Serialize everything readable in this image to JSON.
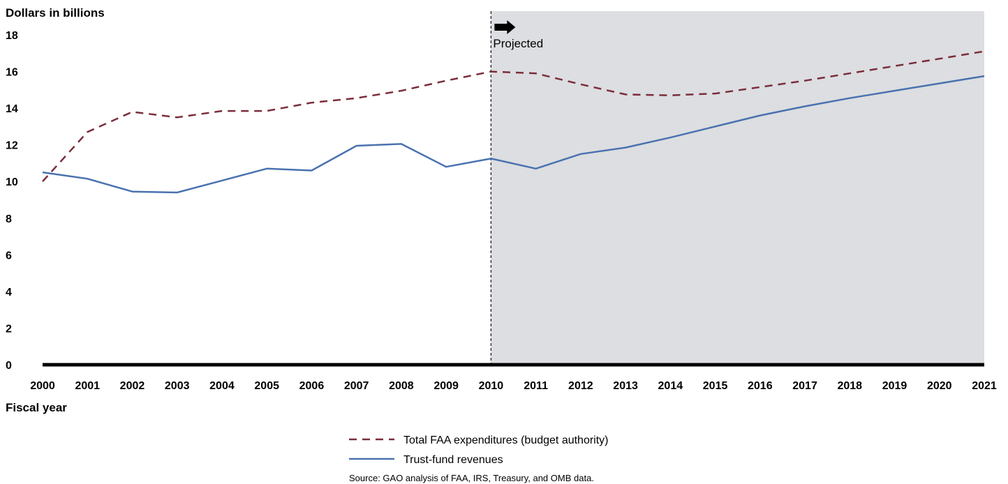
{
  "chart_data": {
    "type": "line",
    "ylabel": "Dollars in billions",
    "xlabel": "Fiscal year",
    "ylim": [
      0,
      18
    ],
    "yticks": [
      0,
      2,
      4,
      6,
      8,
      10,
      12,
      14,
      16,
      18
    ],
    "x": [
      "2000",
      "2001",
      "2002",
      "2003",
      "2004",
      "2005",
      "2006",
      "2007",
      "2008",
      "2009",
      "2010",
      "2011",
      "2012",
      "2013",
      "2014",
      "2015",
      "2016",
      "2017",
      "2018",
      "2019",
      "2020",
      "2021"
    ],
    "series": [
      {
        "name": "Total FAA expenditures (budget authority)",
        "color": "#7b2d3b",
        "style": "dashed",
        "values": [
          10.0,
          12.7,
          13.8,
          13.5,
          13.85,
          13.85,
          14.3,
          14.55,
          14.95,
          15.5,
          16.0,
          15.9,
          15.3,
          14.75,
          14.7,
          14.8,
          15.15,
          15.5,
          15.9,
          16.3,
          16.7,
          17.1
        ]
      },
      {
        "name": "Trust-fund revenues",
        "color": "#4a72b0",
        "style": "solid",
        "values": [
          10.5,
          10.15,
          9.45,
          9.4,
          10.05,
          10.7,
          10.6,
          11.95,
          12.05,
          10.8,
          11.25,
          10.7,
          11.5,
          11.85,
          12.4,
          13.0,
          13.6,
          14.1,
          14.55,
          14.95,
          15.35,
          15.75
        ]
      }
    ],
    "projected": {
      "label": "Projected",
      "start": "2010",
      "end": "2021",
      "shade_color": "#dcdee1"
    },
    "legend_position": "bottom-center",
    "grid": false
  },
  "source": "Source: GAO analysis of FAA, IRS, Treasury, and OMB data."
}
